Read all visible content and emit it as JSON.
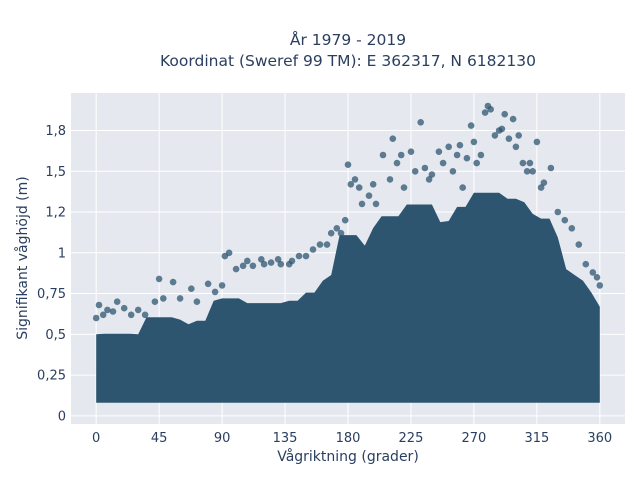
{
  "chart_data": {
    "type": "scatter",
    "title_lines": [
      "År 1979 - 2019",
      "Koordinat (Sweref 99 TM): E 362317, N 6182130"
    ],
    "xlabel": "Vågriktning (grader)",
    "ylabel": "Signifikant våghöjd (m)",
    "xlim": [
      -18,
      378
    ],
    "ylim": [
      -0.05,
      1.98
    ],
    "x_ticks": [
      0,
      45,
      90,
      135,
      180,
      225,
      270,
      315,
      360
    ],
    "y_ticks": [
      0,
      0.25,
      0.5,
      0.75,
      1,
      1.25,
      1.5,
      1.75
    ],
    "y_tick_labels": [
      "0",
      "0,25",
      "0,5",
      "0,75",
      "1",
      "1,2",
      "1,5",
      "1,8"
    ],
    "grid": true,
    "marker_color": "#2e5570",
    "plot_background": "#e5e8ef",
    "series": [
      {
        "x": [
          0,
          2,
          5,
          8,
          12,
          15,
          20,
          25,
          30,
          35,
          42,
          45,
          48,
          55,
          60,
          68,
          72,
          80,
          85,
          90,
          92,
          95,
          100,
          105,
          108,
          112,
          118,
          120,
          125,
          130,
          132,
          138,
          140,
          145,
          150,
          155,
          160,
          165,
          168,
          172,
          175,
          178,
          180,
          182,
          185,
          188,
          190,
          195,
          198,
          200,
          205,
          210,
          212,
          215,
          218,
          220,
          225,
          228,
          232,
          235,
          238,
          240,
          245,
          248,
          252,
          255,
          258,
          260,
          262,
          265,
          268,
          270,
          272,
          275,
          278,
          280,
          282,
          285,
          288,
          290,
          292,
          295,
          298,
          300,
          302,
          305,
          308,
          310,
          312,
          315,
          318,
          320,
          325,
          330,
          335,
          340,
          345,
          350,
          355,
          358,
          360
        ],
        "y": [
          0.6,
          0.68,
          0.62,
          0.65,
          0.64,
          0.7,
          0.66,
          0.62,
          0.65,
          0.62,
          0.7,
          0.84,
          0.72,
          0.82,
          0.72,
          0.78,
          0.7,
          0.81,
          0.76,
          0.8,
          0.98,
          1.0,
          0.9,
          0.92,
          0.95,
          0.92,
          0.96,
          0.93,
          0.94,
          0.96,
          0.93,
          0.93,
          0.95,
          0.98,
          0.98,
          1.02,
          1.05,
          1.05,
          1.12,
          1.15,
          1.12,
          1.2,
          1.54,
          1.42,
          1.45,
          1.4,
          1.3,
          1.35,
          1.42,
          1.3,
          1.6,
          1.45,
          1.7,
          1.55,
          1.6,
          1.4,
          1.62,
          1.5,
          1.8,
          1.52,
          1.45,
          1.48,
          1.62,
          1.55,
          1.65,
          1.5,
          1.6,
          1.66,
          1.4,
          1.58,
          1.78,
          1.68,
          1.55,
          1.6,
          1.86,
          1.9,
          1.88,
          1.72,
          1.75,
          1.76,
          1.85,
          1.7,
          1.82,
          1.65,
          1.72,
          1.55,
          1.5,
          1.55,
          1.5,
          1.68,
          1.4,
          1.43,
          1.52,
          1.25,
          1.2,
          1.15,
          1.05,
          0.93,
          0.88,
          0.85,
          0.8
        ]
      }
    ]
  }
}
